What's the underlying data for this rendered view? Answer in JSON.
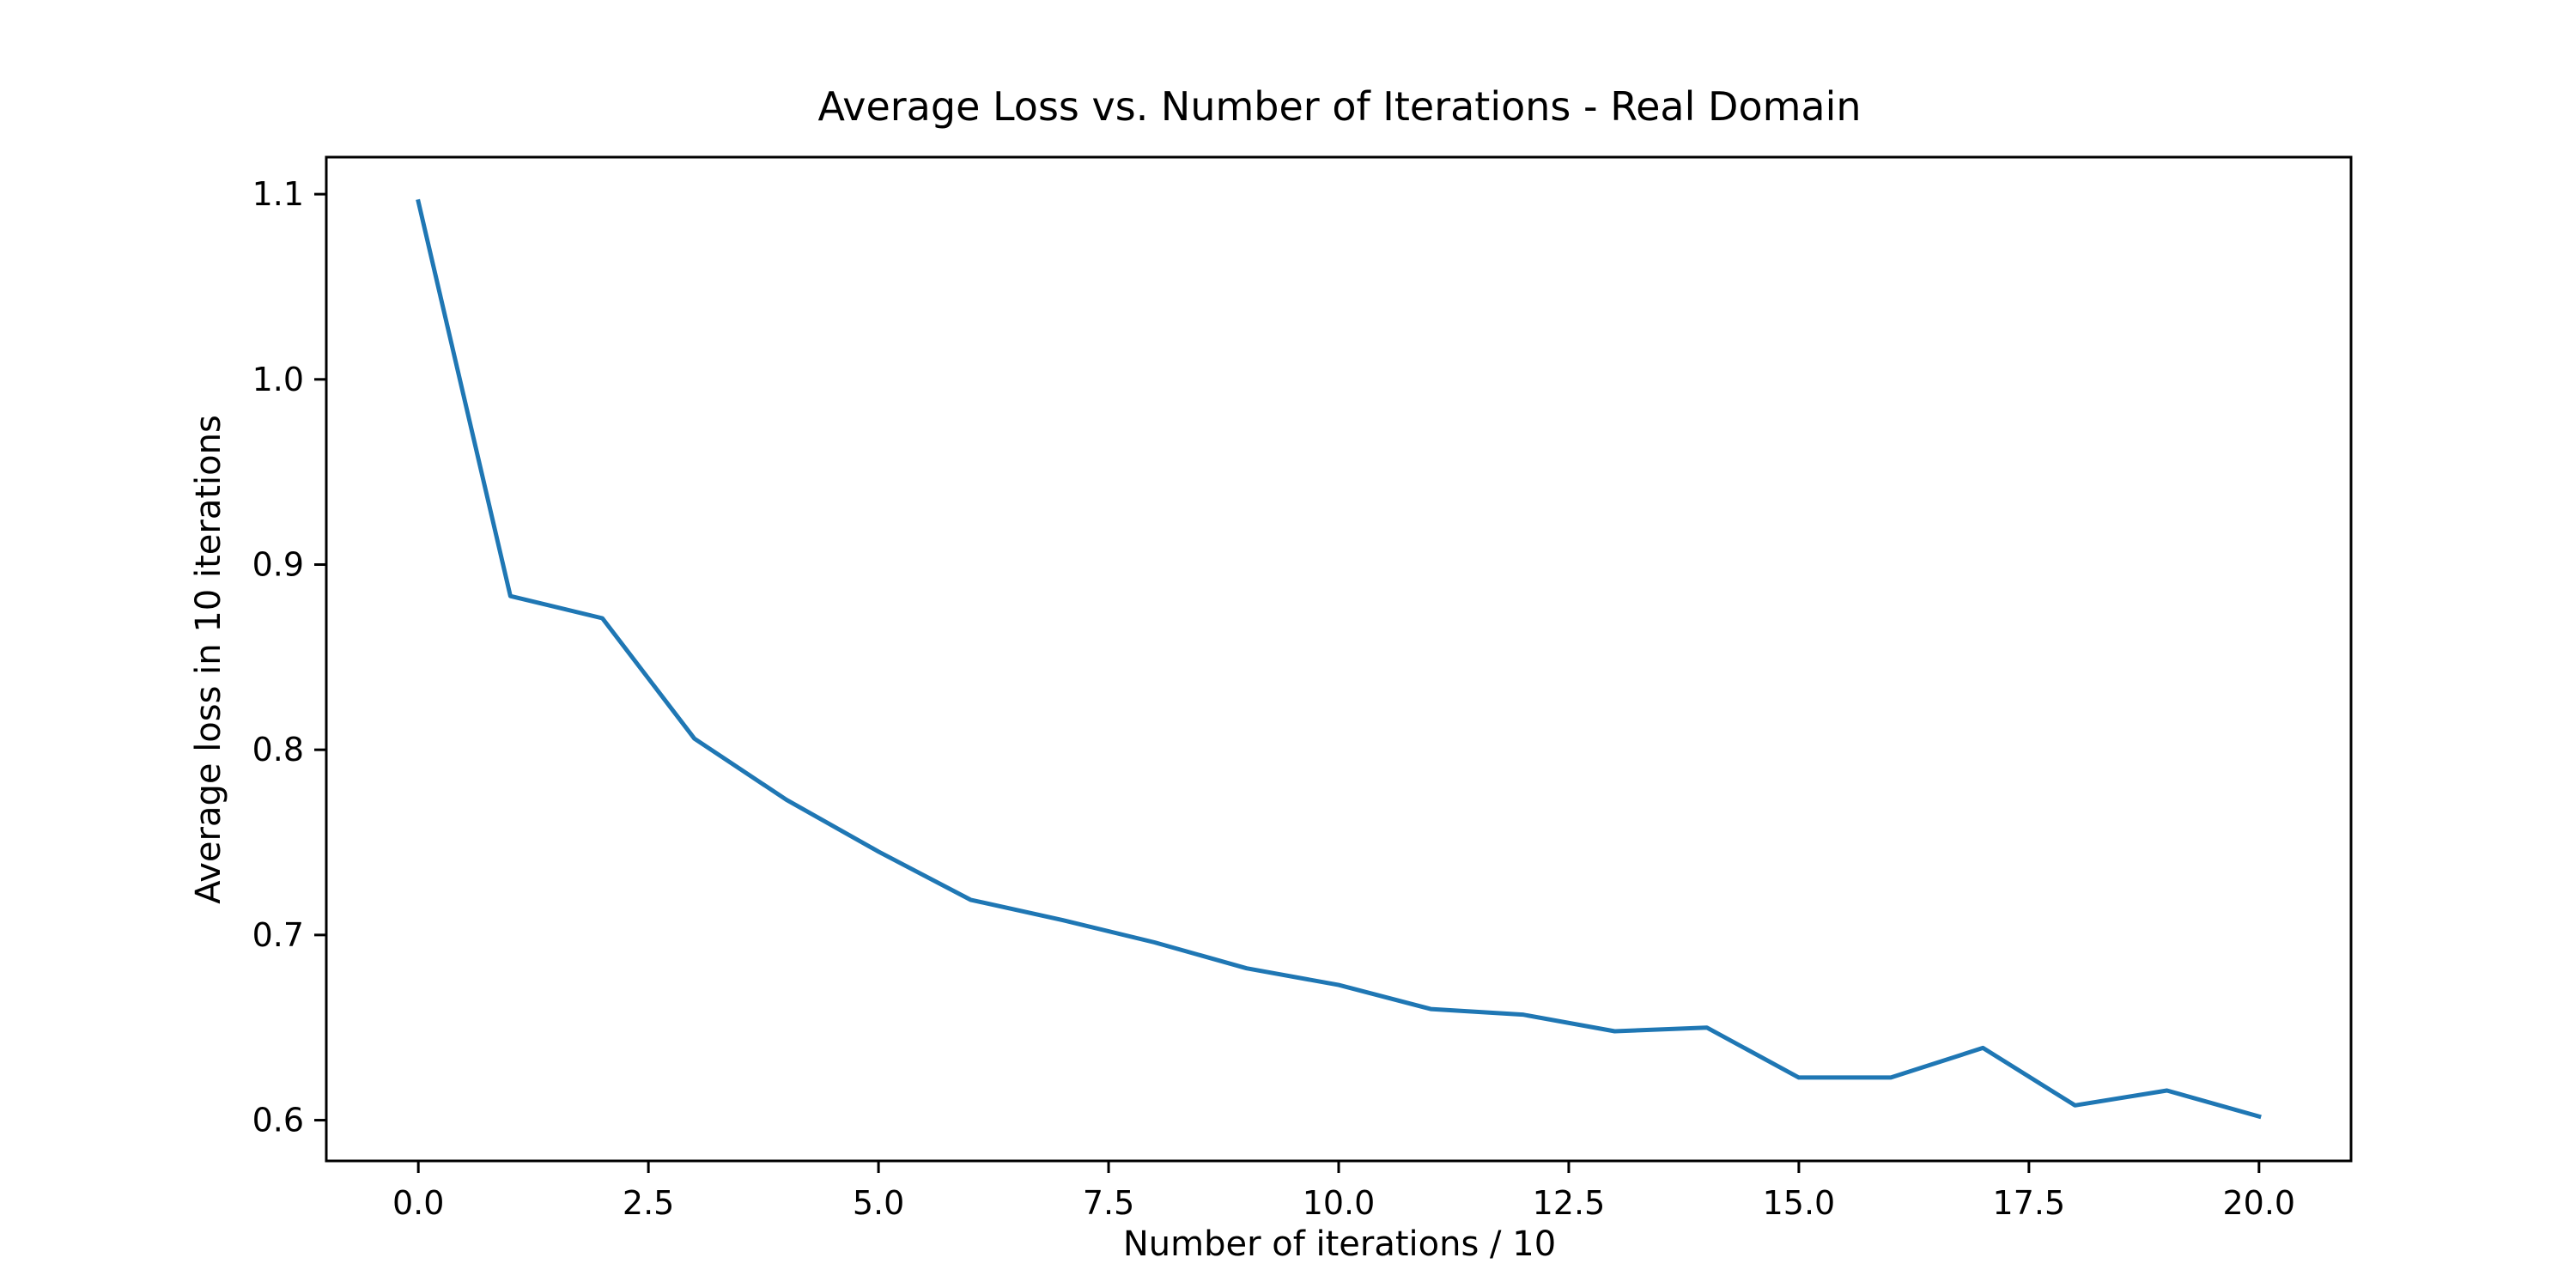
{
  "chart_data": {
    "type": "line",
    "title": "Average Loss vs. Number of Iterations - Real Domain",
    "xlabel": "Number of iterations / 10",
    "ylabel": "Average loss in 10 iterations",
    "xlim": [
      -1.0,
      21.0
    ],
    "ylim": [
      0.578,
      1.12
    ],
    "xticks": [
      0.0,
      2.5,
      5.0,
      7.5,
      10.0,
      12.5,
      15.0,
      17.5,
      20.0
    ],
    "xtick_labels": [
      "0.0",
      "2.5",
      "5.0",
      "7.5",
      "10.0",
      "12.5",
      "15.0",
      "17.5",
      "20.0"
    ],
    "yticks": [
      0.6,
      0.7,
      0.8,
      0.9,
      1.0,
      1.1
    ],
    "ytick_labels": [
      "0.6",
      "0.7",
      "0.8",
      "0.9",
      "1.0",
      "1.1"
    ],
    "grid": false,
    "series": [
      {
        "color": "#1f77b4",
        "x": [
          0,
          1,
          2,
          3,
          4,
          5,
          6,
          7,
          8,
          9,
          10,
          11,
          12,
          13,
          14,
          15,
          16,
          17,
          18,
          19,
          20
        ],
        "y": [
          1.096,
          0.883,
          0.871,
          0.806,
          0.773,
          0.745,
          0.719,
          0.708,
          0.696,
          0.682,
          0.673,
          0.66,
          0.657,
          0.648,
          0.65,
          0.623,
          0.623,
          0.639,
          0.608,
          0.616,
          0.602
        ]
      }
    ]
  }
}
